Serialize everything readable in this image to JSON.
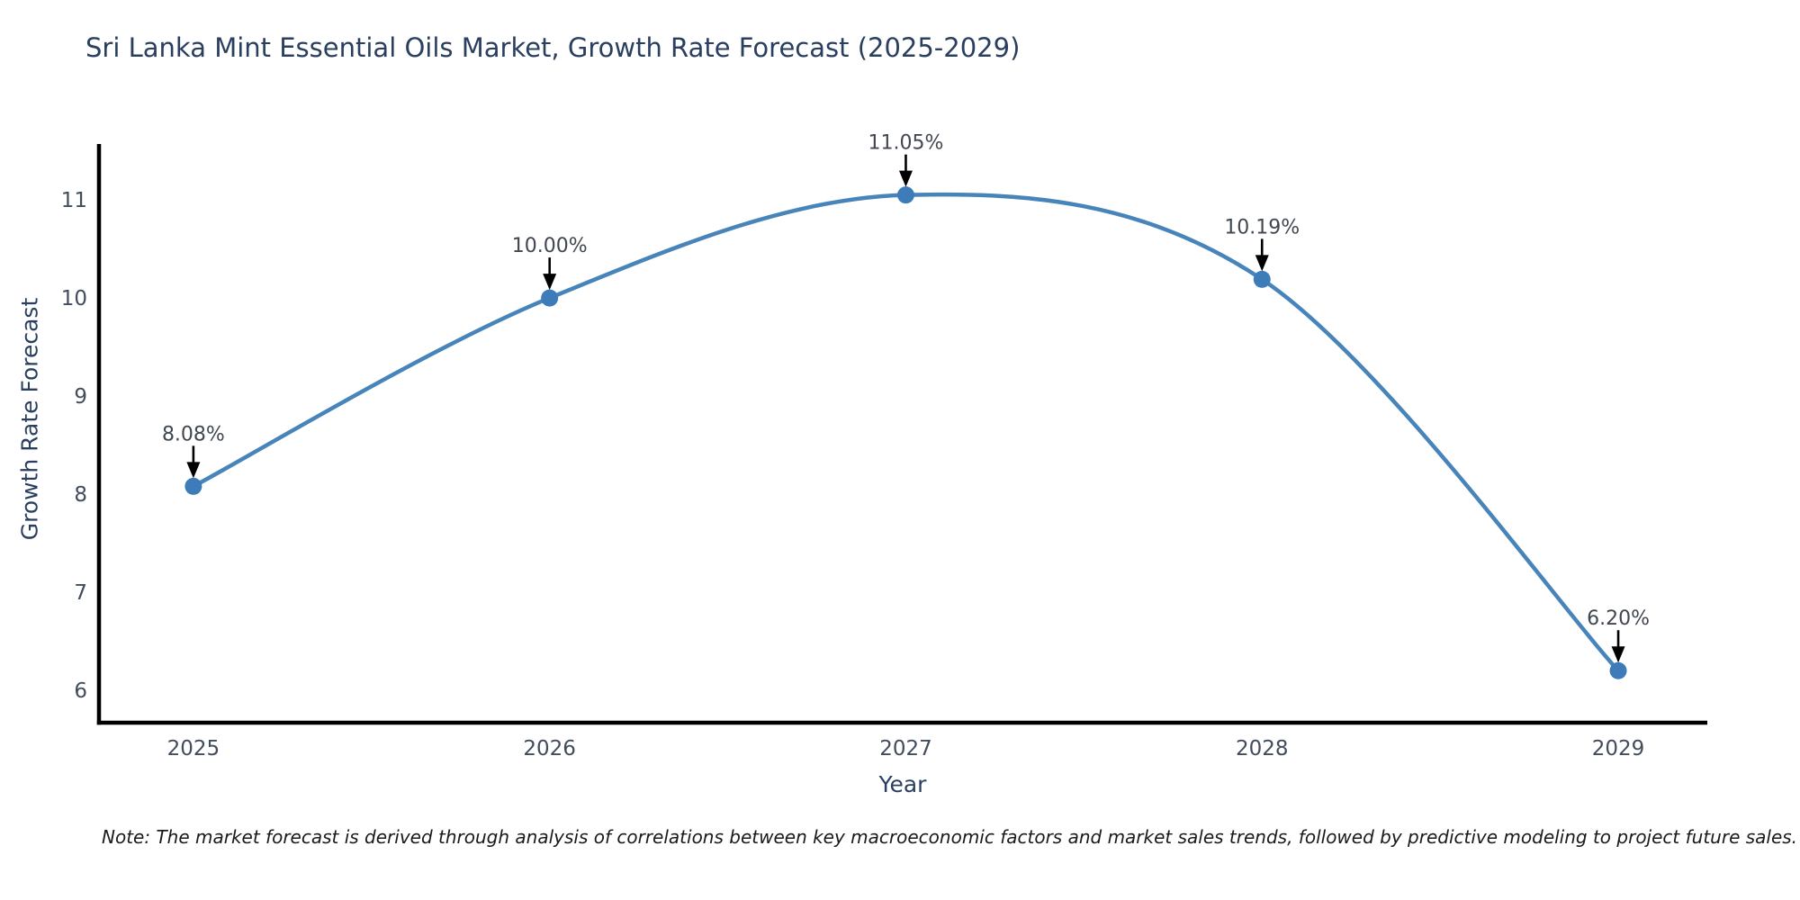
{
  "note": "Note: The market forecast is derived through analysis of correlations between key macroeconomic factors and market sales trends, followed by predictive modeling to project future sales.",
  "colors": {
    "line": "#4784ba",
    "marker": "#3d7cb8",
    "axis_spine": "#000000",
    "title_text": "#2a3f5f",
    "tick_text": "#414c5c",
    "annotation_text": "#404750",
    "arrow": "#000000",
    "note_text": "#1a1a1a",
    "background": "#ffffff"
  },
  "chart_data": {
    "type": "line",
    "title": "Sri Lanka Mint Essential Oils Market, Growth Rate Forecast (2025-2029)",
    "xlabel": "Year",
    "ylabel": "Growth Rate Forecast",
    "x": [
      2025,
      2026,
      2027,
      2028,
      2029
    ],
    "values": [
      8.08,
      10.0,
      11.05,
      10.19,
      6.2
    ],
    "point_labels": [
      "8.08%",
      "10.00%",
      "11.05%",
      "10.19%",
      "6.20%"
    ],
    "x_tick_labels": [
      "2025",
      "2026",
      "2027",
      "2028",
      "2029"
    ],
    "y_ticks": [
      6,
      7,
      8,
      9,
      10,
      11
    ],
    "xlim": [
      2024.735,
      2029.25
    ],
    "ylim": [
      5.67,
      11.57
    ],
    "line_shape": "spline",
    "grid": false,
    "legend": "none",
    "annotation_arrows": true
  }
}
